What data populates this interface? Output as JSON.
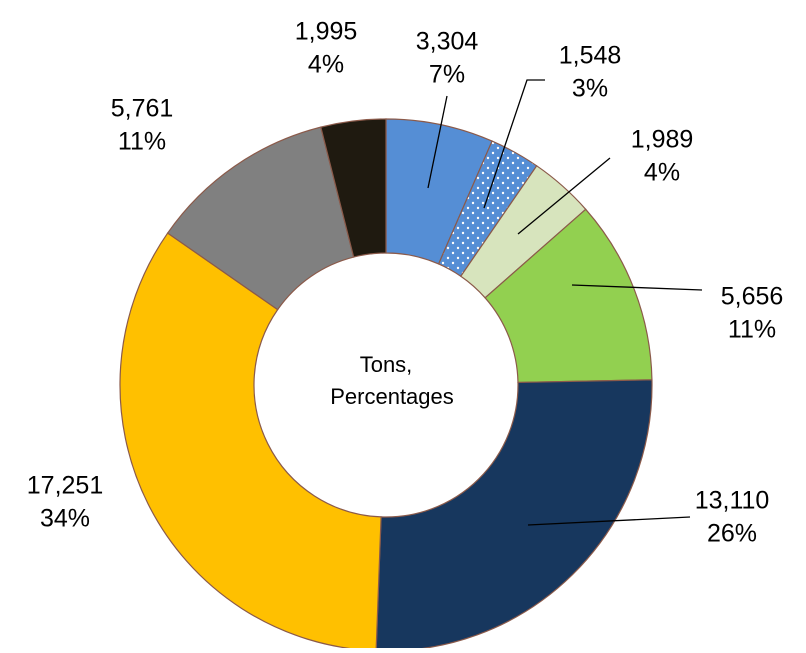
{
  "chart_data": {
    "type": "donut",
    "values": [
      3304,
      1548,
      1989,
      5656,
      13110,
      17251,
      5761,
      1995
    ],
    "value_labels": [
      "3,304",
      "1,548",
      "1,989",
      "5,656",
      "13,110",
      "17,251",
      "5,761",
      "1,995"
    ],
    "percentages": [
      7,
      3,
      4,
      11,
      26,
      34,
      11,
      4
    ],
    "percentage_labels": [
      "7%",
      "3%",
      "4%",
      "11%",
      "26%",
      "34%",
      "11%",
      "4%"
    ],
    "colors": [
      "#558ed5",
      "#558ed5",
      "#d7e4bd",
      "#92d050",
      "#17375e",
      "#ffc000",
      "#808080",
      "#1f1a10"
    ],
    "patterns": [
      null,
      "dots",
      null,
      null,
      null,
      null,
      null,
      null
    ],
    "center_text": [
      "Tons,",
      "Percentages"
    ]
  }
}
